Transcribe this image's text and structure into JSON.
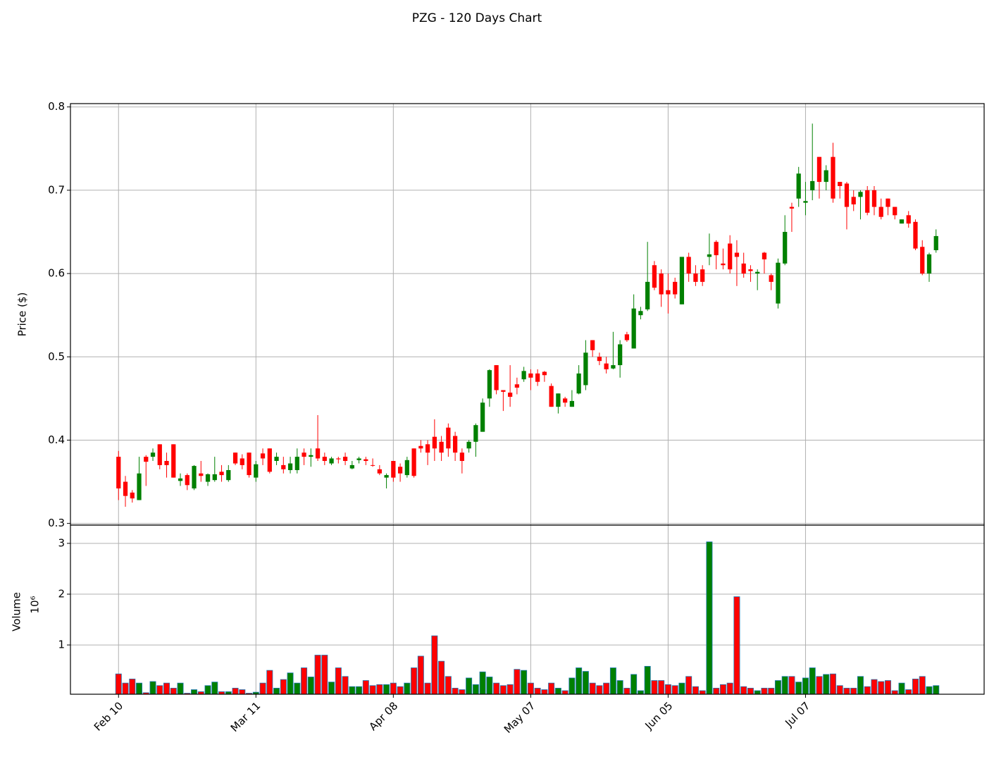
{
  "chart_data": {
    "type": "candlestick",
    "title": "PZG - 120 Days Chart",
    "ylabel": "Price ($)",
    "categories": [
      "Feb 10",
      null,
      null,
      null,
      null,
      null,
      null,
      null,
      null,
      null,
      null,
      null,
      null,
      null,
      null,
      null,
      null,
      null,
      null,
      null,
      "Mar 11",
      null,
      null,
      null,
      null,
      null,
      null,
      null,
      null,
      null,
      null,
      null,
      null,
      null,
      null,
      null,
      null,
      null,
      null,
      null,
      "Apr 08",
      null,
      null,
      null,
      null,
      null,
      null,
      null,
      null,
      null,
      null,
      null,
      null,
      null,
      null,
      null,
      null,
      null,
      null,
      null,
      "May 07",
      null,
      null,
      null,
      null,
      null,
      null,
      null,
      null,
      null,
      null,
      null,
      null,
      null,
      null,
      null,
      null,
      null,
      null,
      null,
      "Jun 05",
      null,
      null,
      null,
      null,
      null,
      null,
      null,
      null,
      null,
      null,
      null,
      null,
      null,
      null,
      null,
      null,
      null,
      null,
      null,
      "Jul 07",
      null,
      null,
      null,
      null,
      null,
      null,
      null,
      null,
      null,
      null,
      null,
      null,
      null,
      null,
      null,
      null,
      null,
      null,
      null
    ],
    "xlim": [
      -7,
      126
    ],
    "open": [
      0.38,
      0.35,
      0.337,
      0.328,
      0.38,
      0.38,
      0.395,
      0.375,
      0.395,
      0.351,
      0.358,
      0.342,
      0.36,
      0.35,
      0.352,
      0.362,
      0.352,
      0.385,
      0.378,
      0.385,
      0.355,
      0.384,
      0.39,
      0.375,
      0.37,
      0.364,
      0.364,
      0.385,
      0.38,
      0.39,
      0.38,
      0.372,
      0.378,
      0.38,
      0.366,
      0.376,
      0.377,
      0.37,
      0.365,
      0.355,
      0.375,
      0.368,
      0.358,
      0.39,
      0.393,
      0.395,
      0.404,
      0.398,
      0.415,
      0.405,
      0.385,
      0.39,
      0.398,
      0.41,
      0.45,
      0.49,
      0.46,
      0.457,
      0.467,
      0.473,
      0.48,
      0.48,
      0.482,
      0.465,
      0.44,
      0.45,
      0.44,
      0.456,
      0.466,
      0.52,
      0.5,
      0.492,
      0.486,
      0.49,
      0.527,
      0.51,
      0.55,
      0.557,
      0.61,
      0.6,
      0.58,
      0.59,
      0.563,
      0.62,
      0.6,
      0.605,
      0.62,
      0.638,
      0.612,
      0.636,
      0.625,
      0.612,
      0.605,
      0.6,
      0.625,
      0.598,
      0.564,
      0.612,
      0.68,
      0.69,
      0.685,
      0.7,
      0.74,
      0.71,
      0.74,
      0.71,
      0.708,
      0.692,
      0.692,
      0.7,
      0.7,
      0.68,
      0.69,
      0.68,
      0.66,
      0.67,
      0.662,
      0.632,
      0.6,
      0.628
    ],
    "high": [
      0.387,
      0.357,
      0.34,
      0.38,
      0.382,
      0.39,
      0.395,
      0.385,
      0.395,
      0.36,
      0.36,
      0.37,
      0.375,
      0.36,
      0.38,
      0.37,
      0.37,
      0.385,
      0.383,
      0.385,
      0.375,
      0.39,
      0.39,
      0.385,
      0.38,
      0.38,
      0.39,
      0.39,
      0.39,
      0.43,
      0.385,
      0.38,
      0.38,
      0.385,
      0.375,
      0.38,
      0.38,
      0.378,
      0.37,
      0.36,
      0.375,
      0.372,
      0.38,
      0.39,
      0.4,
      0.4,
      0.425,
      0.405,
      0.42,
      0.41,
      0.39,
      0.4,
      0.42,
      0.45,
      0.485,
      0.49,
      0.46,
      0.49,
      0.475,
      0.488,
      0.485,
      0.485,
      0.483,
      0.468,
      0.456,
      0.452,
      0.46,
      0.49,
      0.52,
      0.52,
      0.505,
      0.5,
      0.53,
      0.52,
      0.53,
      0.575,
      0.56,
      0.638,
      0.615,
      0.605,
      0.6,
      0.595,
      0.62,
      0.625,
      0.61,
      0.61,
      0.648,
      0.64,
      0.63,
      0.646,
      0.64,
      0.625,
      0.61,
      0.605,
      0.626,
      0.6,
      0.618,
      0.67,
      0.685,
      0.728,
      0.71,
      0.78,
      0.74,
      0.73,
      0.757,
      0.71,
      0.71,
      0.7,
      0.7,
      0.705,
      0.705,
      0.69,
      0.69,
      0.68,
      0.665,
      0.675,
      0.665,
      0.64,
      0.625,
      0.653
    ],
    "low": [
      0.328,
      0.32,
      0.325,
      0.328,
      0.345,
      0.375,
      0.365,
      0.355,
      0.355,
      0.345,
      0.34,
      0.34,
      0.35,
      0.345,
      0.35,
      0.35,
      0.35,
      0.37,
      0.365,
      0.355,
      0.35,
      0.37,
      0.36,
      0.37,
      0.36,
      0.36,
      0.36,
      0.37,
      0.368,
      0.375,
      0.37,
      0.37,
      0.372,
      0.37,
      0.365,
      0.372,
      0.37,
      0.368,
      0.358,
      0.342,
      0.35,
      0.35,
      0.355,
      0.355,
      0.385,
      0.37,
      0.375,
      0.375,
      0.38,
      0.375,
      0.36,
      0.385,
      0.38,
      0.41,
      0.44,
      0.455,
      0.435,
      0.44,
      0.455,
      0.47,
      0.46,
      0.465,
      0.47,
      0.44,
      0.432,
      0.44,
      0.44,
      0.455,
      0.46,
      0.5,
      0.49,
      0.48,
      0.485,
      0.475,
      0.518,
      0.51,
      0.545,
      0.555,
      0.58,
      0.56,
      0.552,
      0.57,
      0.563,
      0.59,
      0.585,
      0.585,
      0.61,
      0.605,
      0.605,
      0.6,
      0.585,
      0.595,
      0.59,
      0.58,
      0.6,
      0.58,
      0.558,
      0.61,
      0.65,
      0.68,
      0.67,
      0.688,
      0.69,
      0.7,
      0.685,
      0.69,
      0.653,
      0.675,
      0.665,
      0.67,
      0.67,
      0.665,
      0.67,
      0.665,
      0.66,
      0.655,
      0.628,
      0.598,
      0.59,
      0.625
    ],
    "close": [
      0.342,
      0.333,
      0.33,
      0.36,
      0.374,
      0.385,
      0.37,
      0.37,
      0.355,
      0.354,
      0.346,
      0.369,
      0.357,
      0.359,
      0.359,
      0.358,
      0.364,
      0.372,
      0.37,
      0.358,
      0.371,
      0.378,
      0.362,
      0.38,
      0.365,
      0.372,
      0.38,
      0.38,
      0.382,
      0.378,
      0.375,
      0.378,
      0.377,
      0.375,
      0.37,
      0.378,
      0.375,
      0.37,
      0.36,
      0.358,
      0.355,
      0.36,
      0.376,
      0.357,
      0.39,
      0.385,
      0.39,
      0.385,
      0.39,
      0.385,
      0.375,
      0.398,
      0.418,
      0.445,
      0.484,
      0.46,
      0.458,
      0.452,
      0.463,
      0.483,
      0.475,
      0.47,
      0.478,
      0.44,
      0.456,
      0.445,
      0.447,
      0.48,
      0.505,
      0.508,
      0.495,
      0.485,
      0.49,
      0.515,
      0.52,
      0.558,
      0.555,
      0.59,
      0.583,
      0.575,
      0.575,
      0.575,
      0.62,
      0.6,
      0.59,
      0.59,
      0.623,
      0.622,
      0.61,
      0.605,
      0.62,
      0.6,
      0.603,
      0.602,
      0.617,
      0.59,
      0.613,
      0.65,
      0.678,
      0.72,
      0.687,
      0.711,
      0.71,
      0.724,
      0.69,
      0.705,
      0.68,
      0.683,
      0.698,
      0.673,
      0.68,
      0.668,
      0.68,
      0.67,
      0.665,
      0.66,
      0.63,
      0.6,
      0.623,
      0.645
    ],
    "up_color": "#008000",
    "down_color": "#ff0000",
    "ylim": [
      0.298,
      0.804
    ],
    "yticks": [
      0.3,
      0.4,
      0.5,
      0.6,
      0.7,
      0.8
    ],
    "grid": true,
    "volume": {
      "ylabel": "Volume",
      "offset_label": "10⁶",
      "edge_color": "#1f77b4",
      "values": [
        0.43,
        0.25,
        0.33,
        0.25,
        0.06,
        0.28,
        0.2,
        0.25,
        0.15,
        0.25,
        0.05,
        0.12,
        0.08,
        0.2,
        0.27,
        0.08,
        0.08,
        0.15,
        0.12,
        0.05,
        0.07,
        0.25,
        0.5,
        0.15,
        0.32,
        0.45,
        0.25,
        0.55,
        0.37,
        0.8,
        0.8,
        0.27,
        0.55,
        0.38,
        0.18,
        0.18,
        0.3,
        0.2,
        0.22,
        0.22,
        0.25,
        0.18,
        0.25,
        0.55,
        0.78,
        0.25,
        1.18,
        0.68,
        0.38,
        0.15,
        0.12,
        0.35,
        0.22,
        0.47,
        0.37,
        0.25,
        0.2,
        0.22,
        0.52,
        0.5,
        0.25,
        0.15,
        0.12,
        0.25,
        0.15,
        0.1,
        0.35,
        0.55,
        0.48,
        0.25,
        0.2,
        0.25,
        0.55,
        0.3,
        0.15,
        0.42,
        0.1,
        0.58,
        0.3,
        0.3,
        0.22,
        0.2,
        0.25,
        0.38,
        0.18,
        0.1,
        3.03,
        0.15,
        0.22,
        0.25,
        1.95,
        0.18,
        0.15,
        0.1,
        0.15,
        0.15,
        0.3,
        0.38,
        0.38,
        0.27,
        0.35,
        0.55,
        0.38,
        0.42,
        0.43,
        0.2,
        0.15,
        0.15,
        0.38,
        0.18,
        0.32,
        0.28,
        0.3,
        0.1,
        0.25,
        0.12,
        0.33,
        0.38,
        0.18,
        0.2
      ],
      "ylim": [
        0.03,
        3.36
      ],
      "yticks": [
        1,
        2,
        3
      ]
    }
  }
}
